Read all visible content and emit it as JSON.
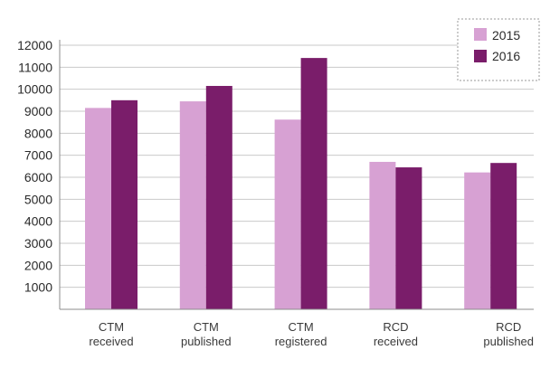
{
  "chart_data": {
    "type": "bar",
    "categories": [
      [
        "CTM",
        "received"
      ],
      [
        "CTM",
        "published"
      ],
      [
        "CTM",
        "registered"
      ],
      [
        "RCD",
        "received"
      ],
      [
        "RCD",
        "published"
      ]
    ],
    "series": [
      {
        "name": "2015",
        "color": "#d7a1d3",
        "values": [
          9150,
          9450,
          8620,
          6700,
          6220
        ]
      },
      {
        "name": "2016",
        "color": "#7a1d6a",
        "values": [
          9500,
          10150,
          11420,
          6450,
          6650
        ]
      }
    ],
    "yticks": [
      1000,
      2000,
      3000,
      4000,
      5000,
      6000,
      7000,
      8000,
      9000,
      10000,
      11000,
      12000
    ],
    "ylim": [
      0,
      12000
    ],
    "grid": true,
    "legend_position": "top-right",
    "title": "",
    "xlabel": "",
    "ylabel": ""
  }
}
